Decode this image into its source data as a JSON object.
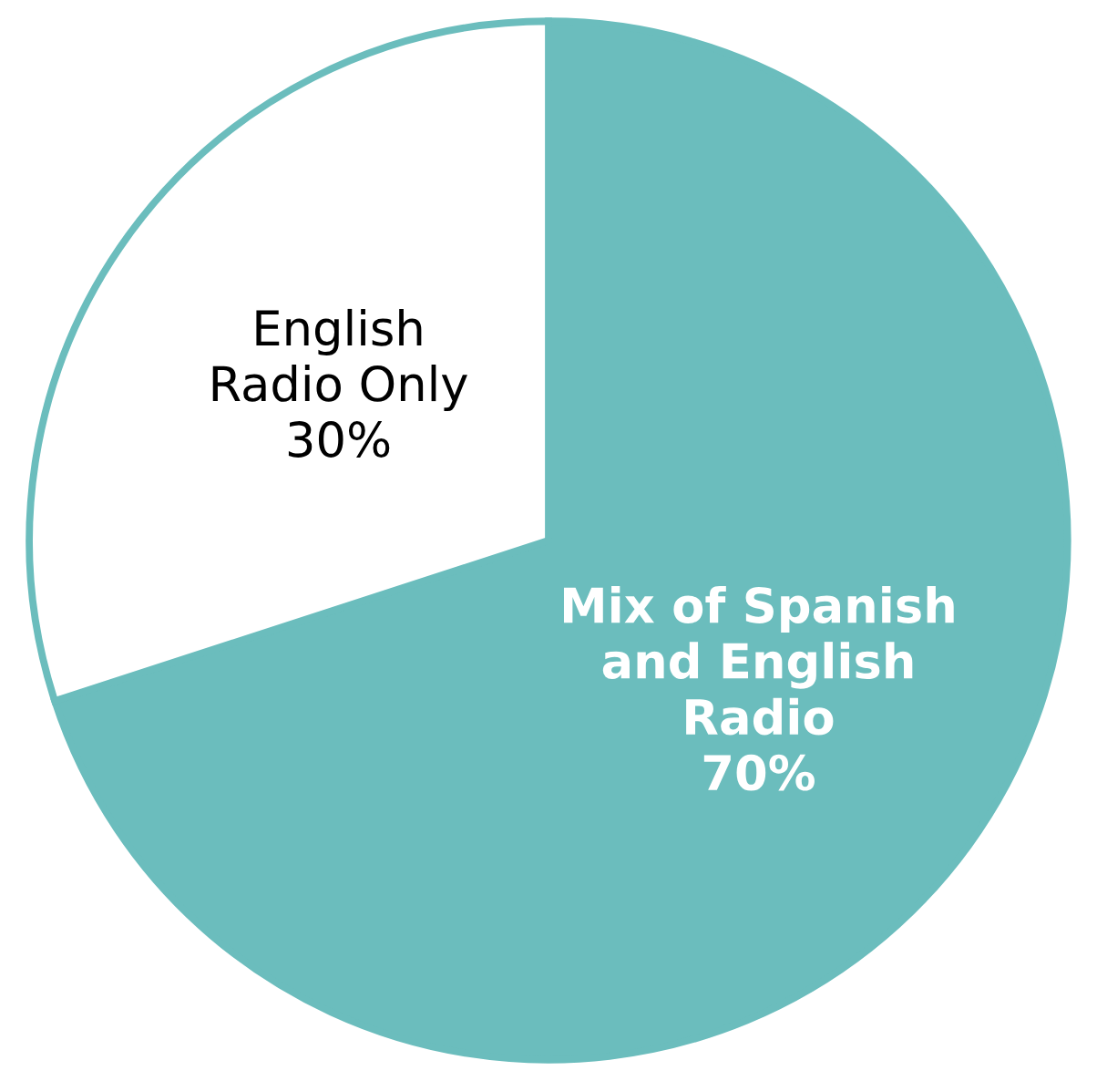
{
  "chart_data": {
    "type": "pie",
    "categories": [
      "Mix of Spanish\nand English\nRadio",
      "English\nRadio Only"
    ],
    "values": [
      70,
      30
    ],
    "value_labels": [
      "70%",
      "30%"
    ],
    "colors": [
      "#6bbdbd",
      "#ffffff"
    ],
    "legend": false
  }
}
